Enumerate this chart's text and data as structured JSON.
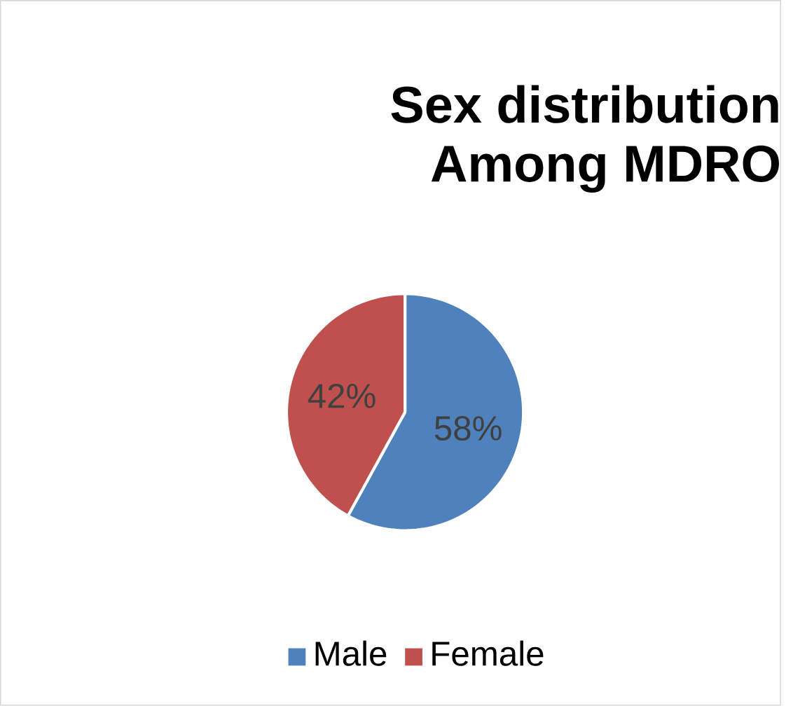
{
  "chart_data": {
    "type": "pie",
    "title": "Sex distribution\nAmong MDRO",
    "categories": [
      "Male",
      "Female"
    ],
    "values": [
      58,
      42
    ],
    "colors": [
      "#4f81bd",
      "#c0504d"
    ],
    "value_labels": [
      "58%",
      "42%"
    ],
    "legend": "bottom"
  }
}
